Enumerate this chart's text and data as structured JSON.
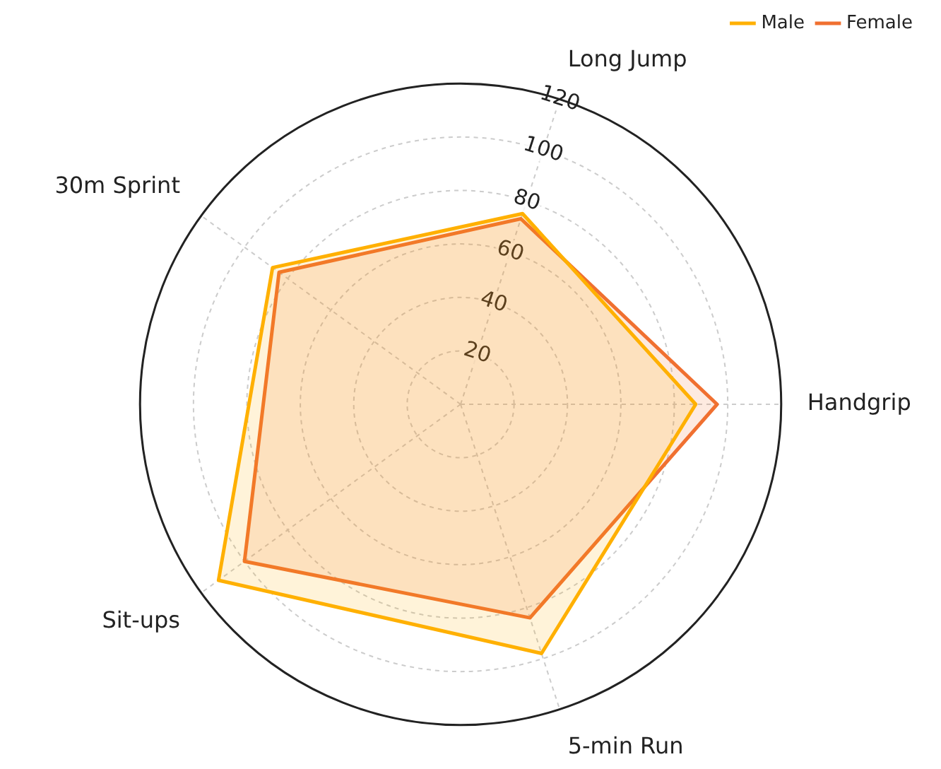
{
  "chart_data": {
    "type": "radar",
    "categories": [
      "Long Jump",
      "Handgrip",
      "5-min Run",
      "Sit-ups",
      "30m Sprint"
    ],
    "series": [
      {
        "name": "Male",
        "color": "#ffb000",
        "values": [
          75,
          88,
          98,
          112,
          87
        ]
      },
      {
        "name": "Female",
        "color": "#f07030",
        "values": [
          73,
          96,
          84,
          100,
          84
        ]
      }
    ],
    "ylim": [
      0,
      120
    ],
    "yticks": [
      20,
      40,
      60,
      80,
      100,
      120
    ],
    "grid": true,
    "legend": "top right",
    "line_style": "solid",
    "marker": "none"
  }
}
